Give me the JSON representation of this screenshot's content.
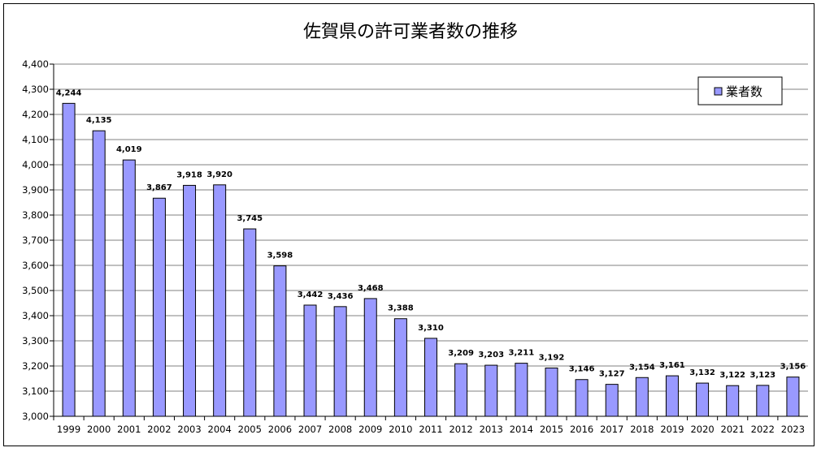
{
  "chart_data": {
    "type": "bar",
    "title": "佐賀県の許可業者数の推移",
    "categories": [
      "1999",
      "2000",
      "2001",
      "2002",
      "2003",
      "2004",
      "2005",
      "2006",
      "2007",
      "2008",
      "2009",
      "2010",
      "2011",
      "2012",
      "2013",
      "2014",
      "2015",
      "2016",
      "2017",
      "2018",
      "2019",
      "2020",
      "2021",
      "2022",
      "2023"
    ],
    "series": [
      {
        "name": "業者数",
        "values": [
          4244,
          4135,
          4019,
          3867,
          3918,
          3920,
          3745,
          3598,
          3442,
          3436,
          3468,
          3388,
          3310,
          3209,
          3203,
          3211,
          3192,
          3146,
          3127,
          3154,
          3161,
          3132,
          3122,
          3123,
          3156
        ],
        "value_labels": [
          "4,244",
          "4,135",
          "4,019",
          "3,867",
          "3,918",
          "3,920",
          "3,745",
          "3,598",
          "3,442",
          "3,436",
          "3,468",
          "3,388",
          "3,310",
          "3,209",
          "3,203",
          "3,211",
          "3,192",
          "3,146",
          "3,127",
          "3,154",
          "3,161",
          "3,132",
          "3,122",
          "3,123",
          "3,156"
        ]
      }
    ],
    "ylim": [
      3000,
      4400
    ],
    "y_ticks": [
      3000,
      3100,
      3200,
      3300,
      3400,
      3500,
      3600,
      3700,
      3800,
      3900,
      4000,
      4100,
      4200,
      4300,
      4400
    ],
    "y_tick_labels": [
      "3,000",
      "3,100",
      "3,200",
      "3,300",
      "3,400",
      "3,500",
      "3,600",
      "3,700",
      "3,800",
      "3,900",
      "4,000",
      "4,100",
      "4,200",
      "4,300",
      "4,400"
    ],
    "xlabel": "",
    "ylabel": "",
    "grid": true,
    "legend_position": "top-right",
    "colors": {
      "bar_fill": "#9999ff",
      "bar_stroke": "#000000",
      "grid": "#808080",
      "plot_bg": "#ffffff"
    }
  }
}
